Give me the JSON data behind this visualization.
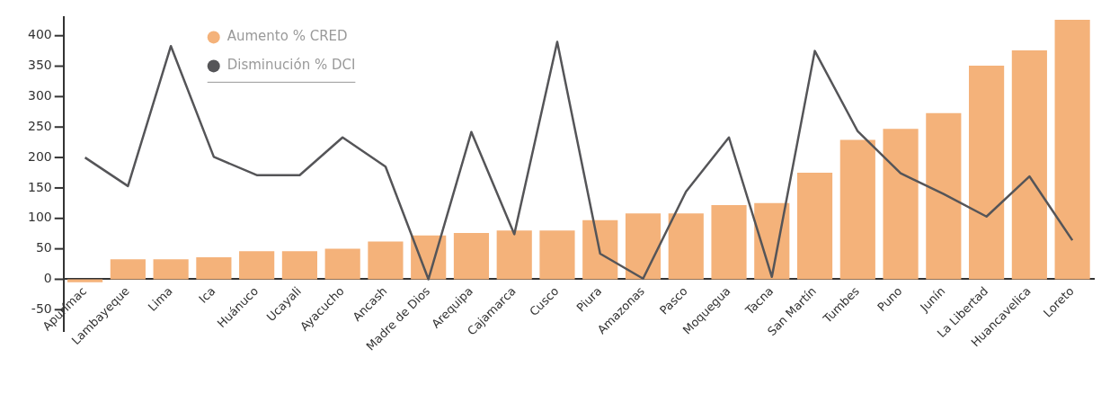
{
  "chart_data": {
    "type": "bar",
    "categories": [
      "Apurímac",
      "Lambayeque",
      "Lima",
      "Ica",
      "Huánuco",
      "Ucayali",
      "Ayacucho",
      "Ancash",
      "Madre de Dios",
      "Arequipa",
      "Cajamarca",
      "Cusco",
      "Piura",
      "Amazonas",
      "Pasco",
      "Moquegua",
      "Tacna",
      "San Martín",
      "Tumbes",
      "Puno",
      "Junín",
      "La Libertad",
      "Huancavelica",
      "Loreto"
    ],
    "series": [
      {
        "name": "Aumento % CRED",
        "color": "#f4b27a",
        "values": [
          -5,
          33,
          33,
          36,
          46,
          46,
          50,
          62,
          72,
          76,
          80,
          80,
          97,
          108,
          108,
          122,
          125,
          175,
          229,
          247,
          273,
          351,
          376,
          426
        ]
      },
      {
        "name": "Disminución % DCI",
        "type": "line",
        "color": "#555558",
        "values": [
          200,
          153,
          383,
          201,
          171,
          171,
          233,
          185,
          0,
          242,
          74,
          390,
          42,
          1,
          144,
          233,
          4,
          375,
          243,
          174,
          140,
          103,
          169,
          64
        ]
      }
    ],
    "ylim": [
      -85,
      430
    ],
    "yticks": [
      -50,
      0,
      50,
      100,
      150,
      200,
      250,
      300,
      350,
      400
    ],
    "grid": false,
    "legend": "top left",
    "marker": "none",
    "line_style": "solid"
  }
}
